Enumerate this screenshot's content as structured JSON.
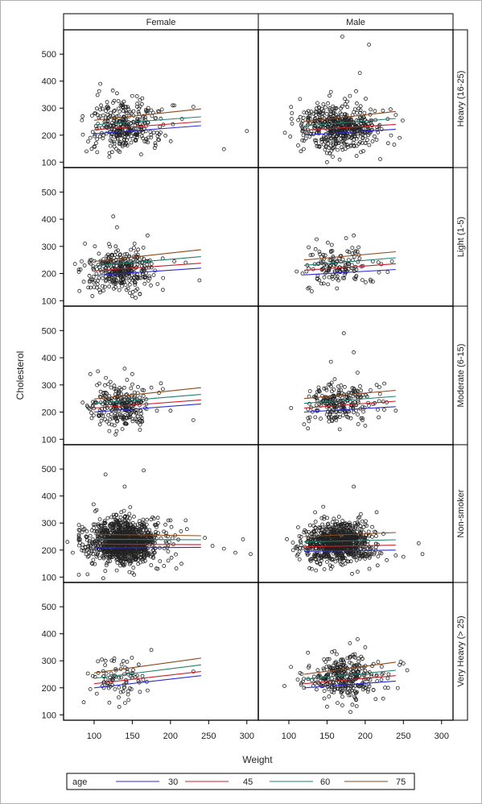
{
  "chart_data": {
    "type": "scatter",
    "subtype": "panel scatter with fitted lines",
    "xlabel": "Weight",
    "ylabel": "Cholesterol",
    "column_headers": [
      "Female",
      "Male"
    ],
    "row_headers": [
      "Heavy (16-25)",
      "Light (1-5)",
      "Moderate (6-15)",
      "Non-smoker",
      "Very Heavy (> 25)"
    ],
    "xlim": [
      60,
      315
    ],
    "ylim": [
      80,
      590
    ],
    "x_ticks": [
      100,
      150,
      200,
      250,
      300
    ],
    "y_ticks": [
      100,
      200,
      300,
      400,
      500
    ],
    "grid": false,
    "legend_position": "bottom",
    "legend": {
      "title": "age",
      "entries": [
        {
          "label": "30",
          "color": "#2b2bd6"
        },
        {
          "label": "45",
          "color": "#c8202a"
        },
        {
          "label": "60",
          "color": "#1f7f6e"
        },
        {
          "label": "75",
          "color": "#8a4a1c"
        }
      ]
    },
    "fit_lines": {
      "Female": {
        "Heavy (16-25)": {
          "x": [
            100,
            240
          ],
          "30": [
            205,
            235
          ],
          "45": [
            220,
            250
          ],
          "60": [
            238,
            268
          ],
          "75": [
            255,
            297
          ]
        },
        "Light (1-5)": {
          "x": [
            100,
            240
          ],
          "30": [
            193,
            220
          ],
          "45": [
            210,
            238
          ],
          "60": [
            228,
            262
          ],
          "75": [
            245,
            288
          ]
        },
        "Moderate (6-15)": {
          "x": [
            100,
            240
          ],
          "30": [
            200,
            230
          ],
          "45": [
            215,
            245
          ],
          "60": [
            232,
            265
          ],
          "75": [
            248,
            290
          ]
        },
        "Non-smoker": {
          "x": [
            100,
            240
          ],
          "30": [
            208,
            210
          ],
          "45": [
            222,
            220
          ],
          "60": [
            240,
            238
          ],
          "75": [
            258,
            253
          ]
        },
        "Very Heavy (> 25)": {
          "x": [
            100,
            240
          ],
          "30": [
            200,
            245
          ],
          "45": [
            215,
            260
          ],
          "60": [
            235,
            285
          ],
          "75": [
            255,
            310
          ]
        }
      },
      "Male": {
        "Heavy (16-25)": {
          "x": [
            120,
            240
          ],
          "30": [
            200,
            222
          ],
          "45": [
            218,
            240
          ],
          "60": [
            234,
            262
          ],
          "75": [
            250,
            288
          ]
        },
        "Light (1-5)": {
          "x": [
            120,
            240
          ],
          "30": [
            195,
            215
          ],
          "45": [
            212,
            236
          ],
          "60": [
            230,
            258
          ],
          "75": [
            250,
            280
          ]
        },
        "Moderate (6-15)": {
          "x": [
            120,
            240
          ],
          "30": [
            200,
            220
          ],
          "45": [
            215,
            240
          ],
          "60": [
            232,
            258
          ],
          "75": [
            250,
            280
          ]
        },
        "Non-smoker": {
          "x": [
            120,
            240
          ],
          "30": [
            195,
            200
          ],
          "45": [
            212,
            218
          ],
          "60": [
            230,
            238
          ],
          "75": [
            250,
            265
          ]
        },
        "Very Heavy (> 25)": {
          "x": [
            120,
            240
          ],
          "30": [
            200,
            225
          ],
          "45": [
            215,
            245
          ],
          "60": [
            232,
            265
          ],
          "75": [
            250,
            295
          ]
        }
      }
    },
    "scatter_points": {
      "Female": {
        "Heavy (16-25)": {
          "count": 320,
          "cx": 140,
          "sx": 22,
          "cy": 235,
          "sy": 45,
          "extra": [
            [
              108,
              390
            ],
            [
              270,
              148
            ],
            [
              300,
              215
            ],
            [
              130,
              355
            ],
            [
              150,
              345
            ],
            [
              160,
              330
            ],
            [
              85,
              270
            ],
            [
              90,
              140
            ],
            [
              205,
              310
            ],
            [
              230,
              305
            ],
            [
              180,
              170
            ],
            [
              215,
              260
            ],
            [
              95,
              190
            ],
            [
              120,
              120
            ]
          ]
        },
        "Light (1-5)": {
          "count": 330,
          "cx": 135,
          "sx": 22,
          "cy": 215,
          "sy": 38,
          "extra": [
            [
              75,
              235
            ],
            [
              88,
              310
            ],
            [
              238,
              175
            ],
            [
              125,
              410
            ],
            [
              130,
              370
            ],
            [
              170,
              340
            ],
            [
              205,
              245
            ],
            [
              220,
              240
            ],
            [
              190,
              140
            ],
            [
              100,
              150
            ],
            [
              160,
              125
            ]
          ]
        },
        "Moderate (6-15)": {
          "count": 260,
          "cx": 135,
          "sx": 20,
          "cy": 220,
          "sy": 38,
          "extra": [
            [
              85,
              235
            ],
            [
              95,
              340
            ],
            [
              105,
              350
            ],
            [
              230,
              170
            ],
            [
              140,
              360
            ],
            [
              150,
              340
            ],
            [
              175,
              290
            ],
            [
              190,
              285
            ],
            [
              200,
              205
            ],
            [
              160,
              135
            ],
            [
              120,
              130
            ]
          ]
        },
        "Non-smoker": {
          "count": 1100,
          "cx": 140,
          "sx": 25,
          "cy": 230,
          "sy": 42,
          "extra": [
            [
              65,
              230
            ],
            [
              72,
              190
            ],
            [
              295,
              240
            ],
            [
              305,
              185
            ],
            [
              270,
              205
            ],
            [
              285,
              190
            ],
            [
              245,
              245
            ],
            [
              255,
              215
            ],
            [
              165,
              495
            ],
            [
              115,
              480
            ],
            [
              140,
              435
            ],
            [
              200,
              310
            ],
            [
              220,
              310
            ]
          ]
        },
        "Very Heavy (> 25)": {
          "count": 80,
          "cx": 130,
          "sx": 18,
          "cy": 230,
          "sy": 35,
          "extra": [
            [
              95,
              195
            ],
            [
              110,
              305
            ],
            [
              115,
              300
            ],
            [
              175,
              340
            ],
            [
              230,
              260
            ],
            [
              120,
              145
            ],
            [
              145,
              155
            ],
            [
              170,
              190
            ],
            [
              160,
              185
            ]
          ]
        }
      },
      "Male": {
        "Heavy (16-25)": {
          "count": 520,
          "cx": 165,
          "sx": 25,
          "cy": 230,
          "sy": 42,
          "extra": [
            [
              170,
              565
            ],
            [
              205,
              535
            ],
            [
              193,
              430
            ],
            [
              155,
              360
            ],
            [
              180,
              345
            ],
            [
              240,
              275
            ],
            [
              245,
              190
            ],
            [
              238,
              165
            ],
            [
              150,
              100
            ],
            [
              120,
              180
            ],
            [
              125,
              220
            ],
            [
              230,
              170
            ]
          ]
        },
        "Light (1-5)": {
          "count": 140,
          "cx": 165,
          "sx": 22,
          "cy": 225,
          "sy": 40,
          "extra": [
            [
              118,
              200
            ],
            [
              125,
              145
            ],
            [
              130,
              135
            ],
            [
              135,
              290
            ],
            [
              140,
              280
            ],
            [
              185,
              340
            ],
            [
              235,
              245
            ],
            [
              210,
              170
            ],
            [
              165,
              175
            ],
            [
              175,
              330
            ]
          ]
        },
        "Moderate (6-15)": {
          "count": 230,
          "cx": 168,
          "sx": 22,
          "cy": 235,
          "sy": 38,
          "extra": [
            [
              172,
              490
            ],
            [
              185,
              420
            ],
            [
              155,
              385
            ],
            [
              190,
              345
            ],
            [
              225,
              305
            ],
            [
              240,
              205
            ],
            [
              215,
              300
            ],
            [
              125,
              140
            ],
            [
              120,
              155
            ],
            [
              200,
              150
            ]
          ]
        },
        "Non-smoker": {
          "count": 850,
          "cx": 165,
          "sx": 22,
          "cy": 230,
          "sy": 38,
          "extra": [
            [
              125,
              200
            ],
            [
              130,
              130
            ],
            [
              135,
              305
            ],
            [
              145,
              360
            ],
            [
              185,
              435
            ],
            [
              240,
              180
            ],
            [
              250,
              175
            ],
            [
              275,
              185
            ],
            [
              270,
              225
            ],
            [
              155,
              130
            ],
            [
              215,
              340
            ]
          ]
        },
        "Very Heavy (> 25)": {
          "count": 320,
          "cx": 170,
          "sx": 24,
          "cy": 235,
          "sy": 40,
          "extra": [
            [
              125,
              330
            ],
            [
              190,
              380
            ],
            [
              180,
              365
            ],
            [
              200,
              350
            ],
            [
              245,
              285
            ],
            [
              255,
              265
            ],
            [
              250,
              290
            ],
            [
              120,
              200
            ],
            [
              150,
              130
            ],
            [
              170,
              135
            ],
            [
              230,
              200
            ]
          ]
        }
      }
    }
  }
}
